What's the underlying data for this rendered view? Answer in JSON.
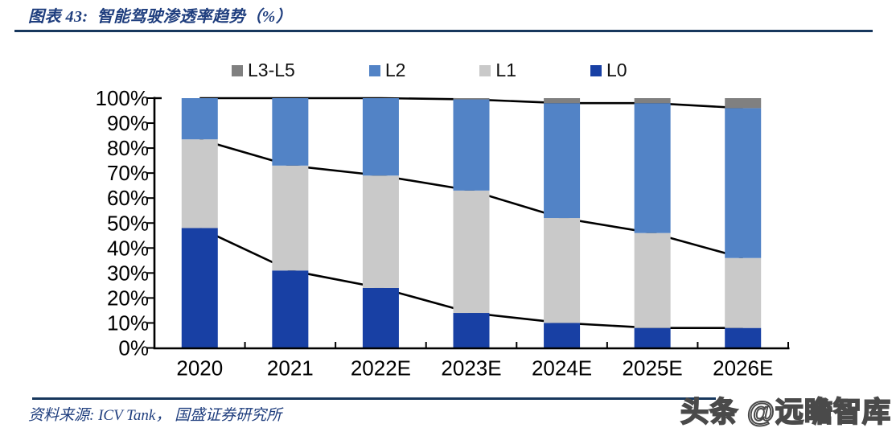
{
  "header": {
    "title": "图表 43:  智能驾驶渗透率趋势（%）"
  },
  "legend": [
    {
      "label": "L3-L5",
      "color": "#808080"
    },
    {
      "label": "L2",
      "color": "#5283C6"
    },
    {
      "label": "L1",
      "color": "#C9C9C9"
    },
    {
      "label": "L0",
      "color": "#1840A4"
    }
  ],
  "chart_data": {
    "type": "bar",
    "subtype": "100%-stacked columns with black cumulative overlay lines",
    "title": "智能驾驶渗透率趋势（%）",
    "categories": [
      "2020",
      "2021",
      "2022E",
      "2023E",
      "2024E",
      "2025E",
      "2026E"
    ],
    "series": [
      {
        "name": "L0",
        "color": "#1840A4",
        "values": [
          48,
          31,
          24,
          14,
          10,
          8,
          8
        ]
      },
      {
        "name": "L1",
        "color": "#C9C9C9",
        "values": [
          35.5,
          42,
          45,
          49,
          42,
          38,
          28
        ]
      },
      {
        "name": "L2",
        "color": "#5283C6",
        "values": [
          16.5,
          27,
          31,
          36.5,
          46,
          52,
          60
        ]
      },
      {
        "name": "L3-L5",
        "color": "#808080",
        "values": [
          0,
          0,
          0,
          0.5,
          2,
          2,
          4
        ]
      }
    ],
    "overlay_lines": [
      {
        "name": "L0 cumulative",
        "color": "#000000",
        "values": [
          48,
          31,
          24,
          14,
          10,
          8,
          8
        ]
      },
      {
        "name": "L0+L1 cumulative",
        "color": "#000000",
        "values": [
          83.5,
          73,
          69,
          63,
          52,
          46,
          36
        ]
      },
      {
        "name": "L0+L1+L2 cumulative",
        "color": "#000000",
        "values": [
          100,
          100,
          100,
          99.5,
          98,
          98,
          96
        ]
      }
    ],
    "xlabel": "",
    "ylabel": "",
    "ylim": [
      0,
      100
    ],
    "yticks": [
      "0%",
      "10%",
      "20%",
      "30%",
      "40%",
      "50%",
      "60%",
      "70%",
      "80%",
      "90%",
      "100%"
    ],
    "grid": false,
    "legend_position": "top"
  },
  "footer": {
    "source": "资料来源: ICV Tank， 国盛证券研究所"
  },
  "watermark": "头条 @远瞻智库"
}
